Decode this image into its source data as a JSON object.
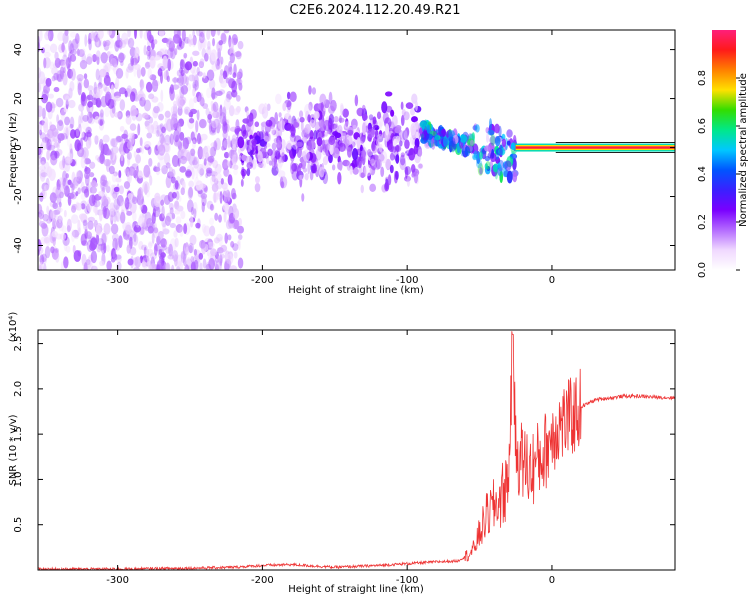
{
  "title": "C2E6.2024.112.20.49.R21",
  "colors": {
    "snr_line": "#ee3333",
    "colormap": [
      "#ffffff",
      "#f0d8ff",
      "#b46bff",
      "#7a00ff",
      "#3a20ff",
      "#0055ff",
      "#00c8ff",
      "#00e88a",
      "#33dd00",
      "#ffe000",
      "#ff8000",
      "#ff1a1a",
      "#ff1f7a"
    ]
  },
  "chart_data": [
    {
      "type": "heatmap",
      "title": "C2E6.2024.112.20.49.R21",
      "xlabel": "Height of straight line (km)",
      "ylabel": "Frequency (Hz)",
      "xlim": [
        -355,
        85
      ],
      "ylim": [
        -50,
        48
      ],
      "xticks": [
        -300,
        -200,
        -100,
        0
      ],
      "yticks": [
        -40,
        -20,
        0,
        20,
        40
      ],
      "colorbar": {
        "label": "Normalized spectral amplitude",
        "range": [
          0,
          1
        ],
        "ticks": [
          "0.0",
          "0.2",
          "0.4",
          "0.6",
          "0.8"
        ],
        "tick_values": [
          0.0,
          0.2,
          0.4,
          0.6,
          0.8
        ]
      },
      "features": [
        {
          "region": "diffuse noise",
          "x_range": [
            -355,
            -215
          ],
          "freq_range": [
            -50,
            48
          ],
          "amplitude": 0.15
        },
        {
          "region": "broad band",
          "x_range": [
            -215,
            -90
          ],
          "freq_range": [
            -15,
            25
          ],
          "amplitude": 0.2
        },
        {
          "region": "converging signal",
          "x_range": [
            -90,
            -25
          ],
          "freq_range": [
            -15,
            15
          ],
          "amplitude": 0.35
        },
        {
          "region": "narrow carrier",
          "x_range": [
            -25,
            85
          ],
          "freq_center": 0,
          "amplitude": 0.95
        }
      ]
    },
    {
      "type": "line",
      "xlabel": "Height of straight line (km)",
      "ylabel": "SNR (10 * v/v)",
      "yunit": "(x10⁴)",
      "xlim": [
        -355,
        85
      ],
      "ylim": [
        0,
        2.65
      ],
      "xticks": [
        -300,
        -200,
        -100,
        0
      ],
      "yticks": [
        0.5,
        1.0,
        1.5,
        2.0,
        2.5
      ],
      "series": [
        {
          "x": [
            -355,
            -300,
            -250,
            -220,
            -200,
            -180,
            -150,
            -120,
            -100,
            -80,
            -65,
            -55,
            -50,
            -45,
            -40,
            -35,
            -30,
            -27,
            -25,
            -20,
            -15,
            -10,
            -5,
            0,
            5,
            10,
            15,
            20,
            30,
            40,
            50,
            60,
            70,
            85
          ],
          "values": [
            0.01,
            0.01,
            0.02,
            0.03,
            0.05,
            0.06,
            0.03,
            0.05,
            0.07,
            0.09,
            0.1,
            0.2,
            0.4,
            0.6,
            0.7,
            0.8,
            1.0,
            2.6,
            1.3,
            1.2,
            1.1,
            1.2,
            1.3,
            1.5,
            1.6,
            1.65,
            1.7,
            1.8,
            1.88,
            1.9,
            1.92,
            1.92,
            1.91,
            1.9
          ]
        }
      ]
    }
  ]
}
